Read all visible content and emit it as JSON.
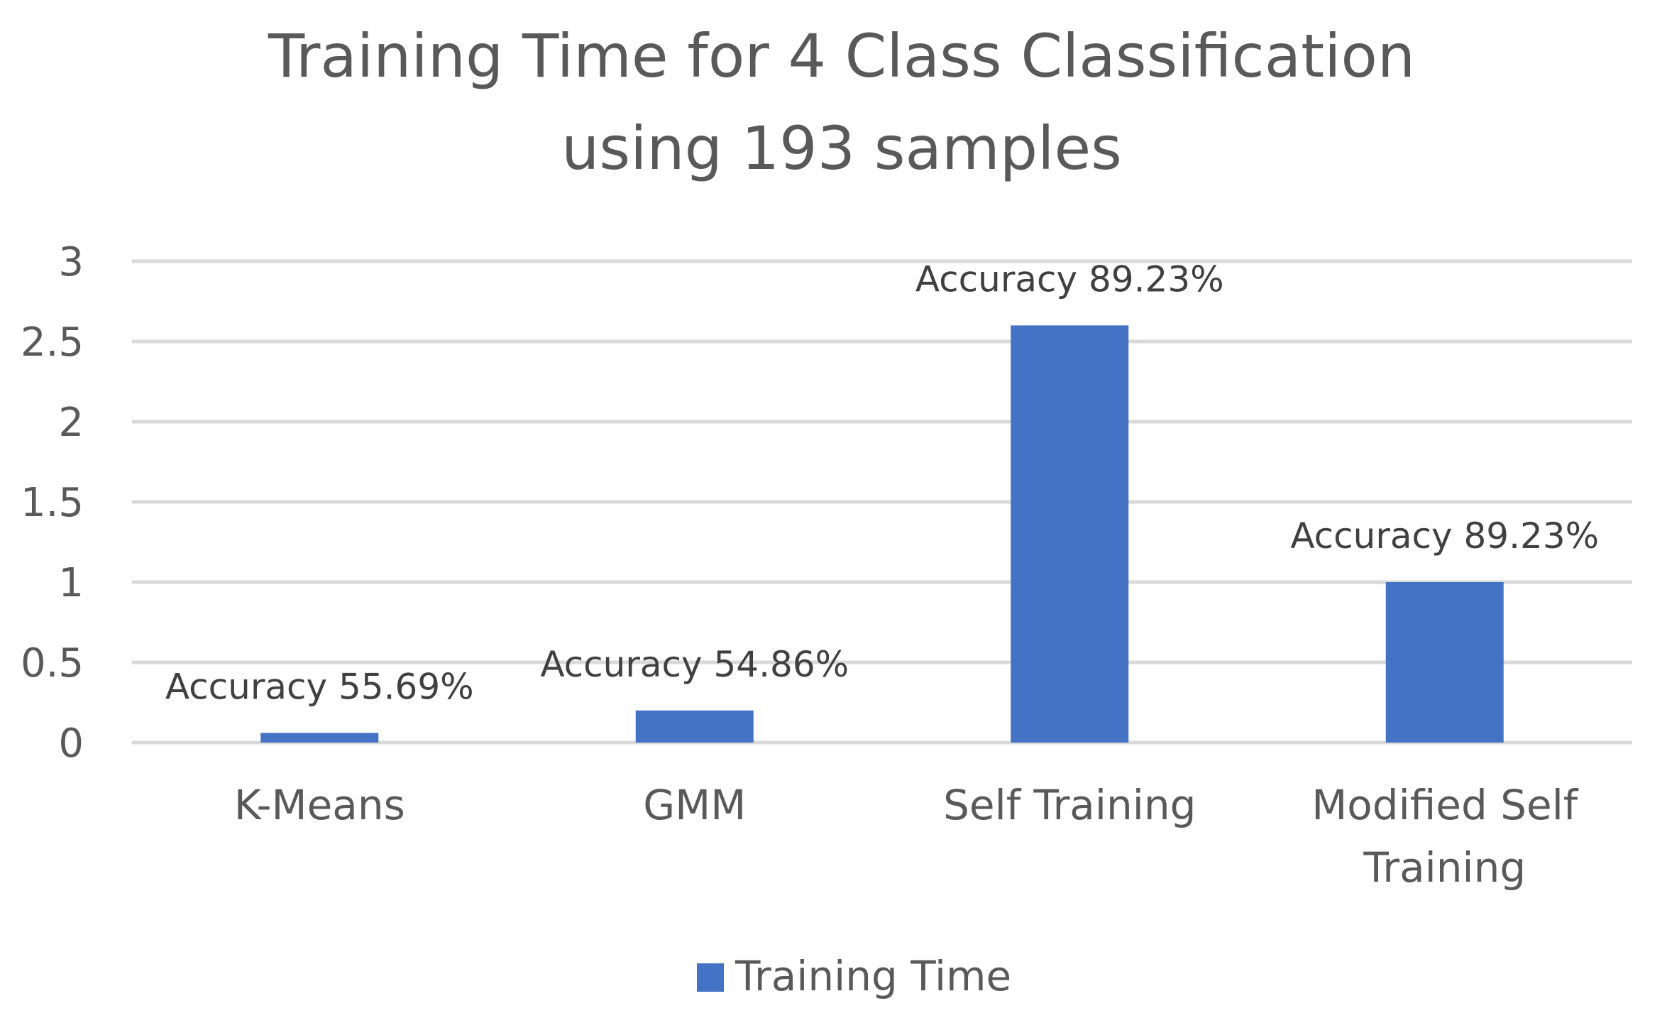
{
  "chart_data": {
    "type": "bar",
    "title_lines": [
      "Training Time for 4 Class Classification",
      "using 193 samples"
    ],
    "categories": [
      [
        "K-Means"
      ],
      [
        "GMM"
      ],
      [
        "Self Training"
      ],
      [
        "Modified Self",
        "Training"
      ]
    ],
    "series": [
      {
        "name": "Training Time",
        "values": [
          0.06,
          0.2,
          2.6,
          1.0
        ],
        "color": "#4472c4"
      }
    ],
    "data_labels": [
      "Accuracy 55.69%",
      "Accuracy 54.86%",
      "Accuracy 89.23%",
      "Accuracy 89.23%"
    ],
    "y_ticks": [
      "0",
      "0.5",
      "1",
      "1.5",
      "2",
      "2.5",
      "3"
    ],
    "ylim": [
      0,
      3
    ],
    "grid": true,
    "legend_position": "bottom",
    "colors": {
      "bar": "#4472c4",
      "grid": "#d9d9d9",
      "text": "#595959"
    }
  }
}
